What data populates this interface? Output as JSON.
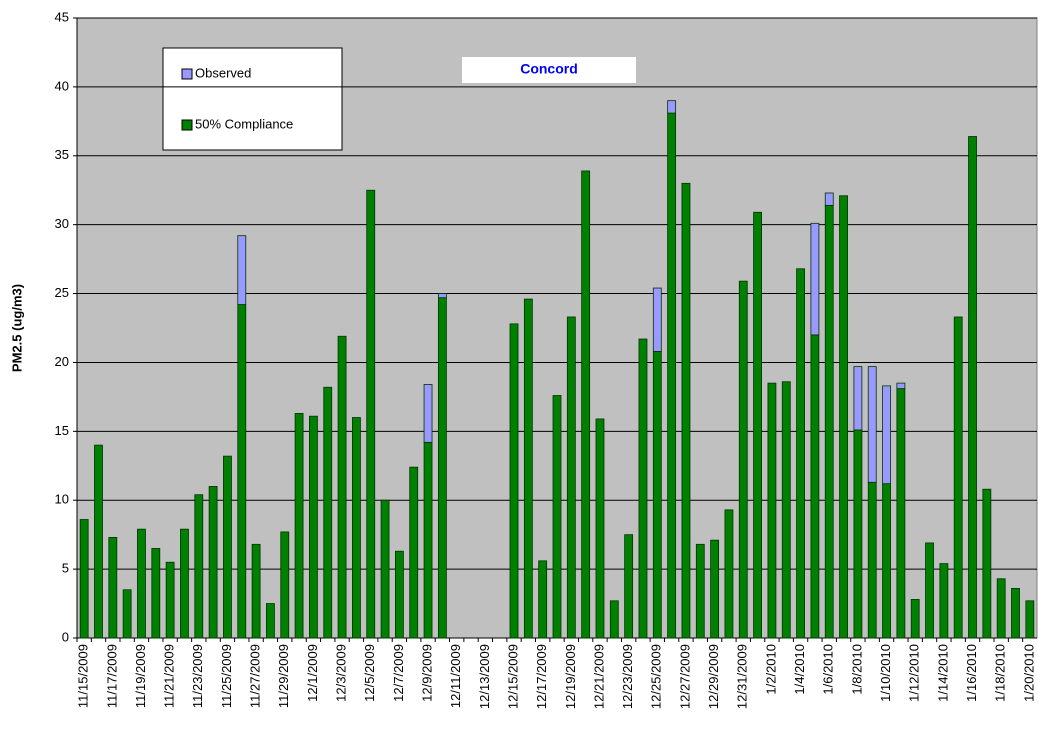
{
  "chart_data": {
    "type": "stacked-bar",
    "title": "Concord",
    "y_label": "PM2.5 (ug/m3)",
    "categories": [
      "11/15/2009",
      null,
      "11/17/2009",
      null,
      "11/19/2009",
      null,
      "11/21/2009",
      null,
      "11/23/2009",
      null,
      "11/25/2009",
      null,
      "11/27/2009",
      null,
      "11/29/2009",
      null,
      "12/1/2009",
      null,
      "12/3/2009",
      null,
      "12/5/2009",
      null,
      "12/7/2009",
      null,
      "12/9/2009",
      null,
      "12/11/2009",
      null,
      "12/13/2009",
      null,
      "12/15/2009",
      null,
      "12/17/2009",
      null,
      "12/19/2009",
      null,
      "12/21/2009",
      null,
      "12/23/2009",
      null,
      "12/25/2009",
      null,
      "12/27/2009",
      null,
      "12/29/2009",
      null,
      "12/31/2009",
      null,
      "1/2/2010",
      null,
      "1/4/2010",
      null,
      "1/6/2010",
      null,
      "1/8/2010",
      null,
      "1/10/2010",
      null,
      "1/12/2010",
      null,
      "1/14/2010",
      null,
      "1/16/2010",
      null,
      "1/18/2010",
      null,
      "1/20/2010"
    ],
    "series": [
      {
        "name": "Observed",
        "color": "#9999ff",
        "values": [
          0,
          0,
          0,
          0,
          0,
          0,
          0,
          0,
          0,
          0,
          0,
          5.0,
          0,
          0,
          0,
          0,
          0,
          0,
          0,
          0,
          0,
          0,
          0,
          0,
          4.2,
          0.3,
          null,
          null,
          null,
          null,
          0,
          0,
          0,
          0,
          0,
          0,
          0,
          0,
          0,
          0,
          4.6,
          0.9,
          0,
          0,
          0,
          0,
          0,
          0,
          0,
          0,
          0,
          8.1,
          0.9,
          0,
          4.6,
          8.4,
          7.1,
          0.4,
          0,
          0,
          0,
          0,
          0,
          0,
          0,
          0,
          0
        ]
      },
      {
        "name": "50% Compliance",
        "color": "#008000",
        "values": [
          8.6,
          14.0,
          7.3,
          3.5,
          7.9,
          6.5,
          5.5,
          7.9,
          10.4,
          11.0,
          13.2,
          24.2,
          6.8,
          2.5,
          7.7,
          16.3,
          16.1,
          18.2,
          21.9,
          16.0,
          32.5,
          10.0,
          6.3,
          12.4,
          14.2,
          24.7,
          null,
          null,
          null,
          null,
          22.8,
          24.6,
          5.6,
          17.6,
          23.3,
          33.9,
          15.9,
          2.7,
          7.5,
          21.7,
          20.8,
          38.1,
          33.0,
          6.8,
          7.1,
          9.3,
          25.9,
          30.9,
          18.5,
          18.6,
          26.8,
          22.0,
          31.4,
          32.1,
          15.1,
          11.3,
          11.2,
          18.1,
          2.8,
          6.9,
          5.4,
          23.3,
          36.4,
          10.8,
          4.3,
          3.6,
          2.7
        ]
      }
    ],
    "ylim": [
      0,
      45
    ],
    "yticks": [
      0,
      5,
      10,
      15,
      20,
      25,
      30,
      35,
      40,
      45
    ],
    "grid": true
  }
}
